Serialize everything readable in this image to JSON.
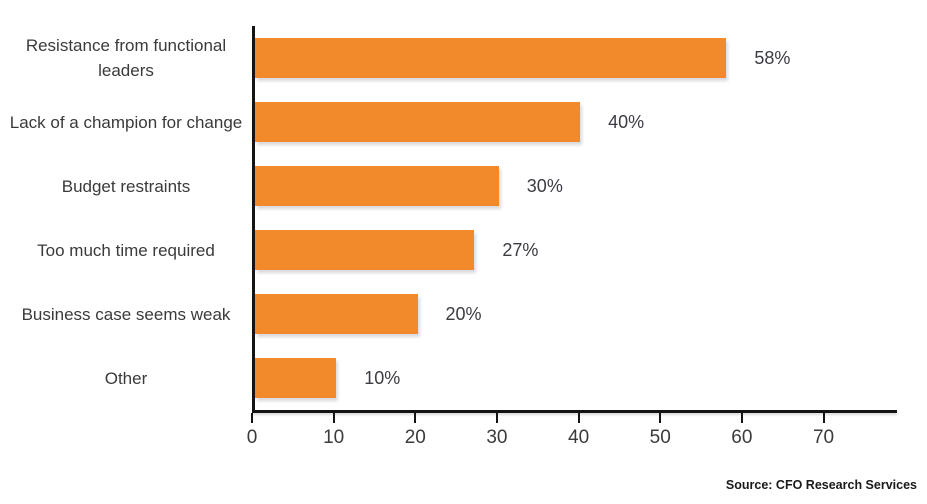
{
  "chart_data": {
    "type": "bar",
    "orientation": "horizontal",
    "title": "",
    "categories": [
      "Resistance from functional leaders",
      "Lack of a champion for change",
      "Budget  restraints",
      "Too much time required",
      "Business case seems weak",
      "Other"
    ],
    "values": [
      58,
      40,
      30,
      27,
      20,
      10
    ],
    "value_labels": [
      "58%",
      "40%",
      "30%",
      "27%",
      "20%",
      "10%"
    ],
    "x_ticks": [
      0,
      10,
      20,
      30,
      40,
      50,
      60,
      70
    ],
    "xlim": [
      0,
      79
    ],
    "grid": false,
    "legend": "none",
    "bar_color": "#F28A2B",
    "axis_color": "#141414",
    "label_color": "#3A3A3A"
  },
  "source_note": "Source: CFO Research Services"
}
